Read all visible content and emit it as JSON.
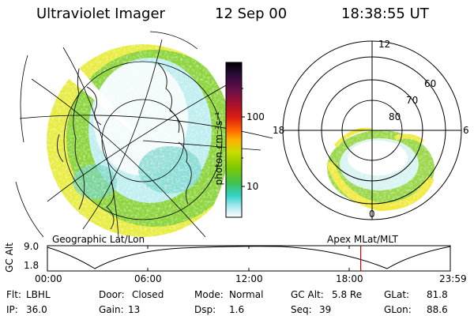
{
  "header": {
    "instrument": "Ultraviolet Imager",
    "date": "12 Sep 00",
    "time": "18:38:55 UT"
  },
  "left_map": {
    "label": "Geographic Lat/Lon"
  },
  "right_map": {
    "label": "Apex MLat/MLT",
    "mlt_labels": {
      "top": "12",
      "left": "18",
      "right": "6",
      "bottom": "0"
    },
    "lat_labels": [
      "60",
      "70",
      "80"
    ]
  },
  "colorbar": {
    "unit_label": "photon cm⁻²s⁻¹",
    "tick_100": "100",
    "tick_10": "10",
    "colors": [
      "#000000",
      "#2a0a3a",
      "#6a0f4a",
      "#b0102a",
      "#e02010",
      "#ff6a00",
      "#ffb000",
      "#c8dc00",
      "#7ec800",
      "#40c050",
      "#30d2c8",
      "#a8e8f0",
      "#ffffff"
    ]
  },
  "timeline": {
    "y_label": "GC Alt",
    "y_max": "9.0",
    "y_min": "1.8",
    "x_ticks": [
      "00:00",
      "06:00",
      "12:00",
      "18:00",
      "23:59"
    ],
    "marker_time_hours": 18.65,
    "marker_color": "#d00000"
  },
  "info": {
    "filter_label": "Flt:",
    "filter_value": "LBHL",
    "door_label": "Door:",
    "door_value": "Closed",
    "mode_label": "Mode:",
    "mode_value": "Normal",
    "gcalt_label": "GC Alt:",
    "gcalt_value": "5.8 Re",
    "glat_label": "GLat:",
    "glat_value": "81.8",
    "ip_label": "IP:",
    "ip_value": "36.0",
    "gain_label": "Gain:",
    "gain_value": "13",
    "dsp_label": "Dsp:",
    "dsp_value": "1.6",
    "seq_label": "Seq:",
    "seq_value": "39",
    "glon_label": "GLon:",
    "glon_value": "88.6"
  }
}
